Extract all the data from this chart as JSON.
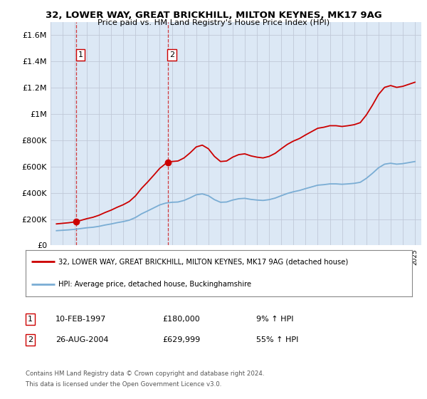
{
  "title_line1": "32, LOWER WAY, GREAT BRICKHILL, MILTON KEYNES, MK17 9AG",
  "title_line2": "Price paid vs. HM Land Registry's House Price Index (HPI)",
  "ylim": [
    0,
    1700000
  ],
  "yticks": [
    0,
    200000,
    400000,
    600000,
    800000,
    1000000,
    1200000,
    1400000,
    1600000
  ],
  "ytick_labels": [
    "£0",
    "£200K",
    "£400K",
    "£600K",
    "£800K",
    "£1M",
    "£1.2M",
    "£1.4M",
    "£1.6M"
  ],
  "sale1_date": 1997.11,
  "sale1_price": 180000,
  "sale1_label": "1",
  "sale2_date": 2004.65,
  "sale2_price": 629999,
  "sale2_label": "2",
  "legend_line1": "32, LOWER WAY, GREAT BRICKHILL, MILTON KEYNES, MK17 9AG (detached house)",
  "legend_line2": "HPI: Average price, detached house, Buckinghamshire",
  "table_row1": [
    "1",
    "10-FEB-1997",
    "£180,000",
    "9% ↑ HPI"
  ],
  "table_row2": [
    "2",
    "26-AUG-2004",
    "£629,999",
    "55% ↑ HPI"
  ],
  "footnote_line1": "Contains HM Land Registry data © Crown copyright and database right 2024.",
  "footnote_line2": "This data is licensed under the Open Government Licence v3.0.",
  "red_color": "#cc0000",
  "blue_color": "#7aadd4",
  "background_plot": "#dce8f5",
  "background_fig": "#ffffff",
  "grid_color": "#c0c8d8"
}
